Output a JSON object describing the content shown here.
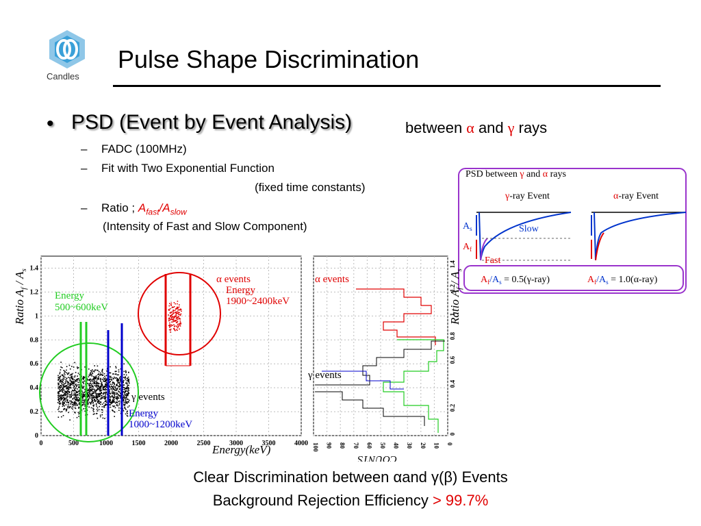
{
  "slide": {
    "title": "Pulse Shape Discrimination",
    "logo_label": "Candles",
    "bullet": "PSD (Event by Event Analysis)",
    "between": {
      "prefix": "between ",
      "alpha": "α",
      "and": " and ",
      "gamma": "γ",
      "suffix": " rays"
    },
    "dash": "–",
    "sub1": "FADC (100MHz)",
    "sub2": "Fit with Two Exponential Function",
    "sub2b": "(fixed time constants)",
    "sub3_prefix": "Ratio ; ",
    "sub3_afast": "A",
    "sub3_fast_sub": "fast",
    "sub3_slash": "/A",
    "sub3_slow_sub": "slow",
    "sub3b": "(Intensity of Fast  and Slow Component)",
    "footer1": "Clear Discrimination between αand γ(β) Events",
    "footer2_prefix": "Background Rejection Efficiency ",
    "footer2_value": "> 99.7%"
  },
  "inset": {
    "title_prefix": "PSD between ",
    "title_gamma": "γ",
    "title_and": " and ",
    "title_alpha": "α",
    "title_suffix": " rays",
    "gamma_event": "-ray Event",
    "alpha_event": "-ray Event",
    "as_label": "A",
    "as_sub": "s",
    "af_label": "A",
    "af_sub": "f",
    "slow": "Slow",
    "fast": "Fast",
    "ratio_gamma": "= 0.5(γ-ray)",
    "ratio_alpha": "= 1.0(α-ray)",
    "ratio_prefix_a": "A",
    "ratio_prefix_f": "f",
    "ratio_prefix_slash": "/A",
    "ratio_prefix_s": "s"
  },
  "scatter": {
    "ylabel": "Ratio A",
    "ylabel_f": "f",
    "ylabel_rest": " / A",
    "ylabel_s": "s",
    "xlabel": "Energy(keV)",
    "xticks": [
      "0",
      "500",
      "1000",
      "1500",
      "2000",
      "2500",
      "3000",
      "3500",
      "4000"
    ],
    "yticks": [
      "0",
      "0.2",
      "0.4",
      "0.6",
      "0.8",
      "1",
      "1.2",
      "1.4"
    ],
    "alpha_label": "α events",
    "alpha_energy1": "Energy",
    "alpha_energy2": "1900~2400keV",
    "green_energy1": "Energy",
    "green_energy2": "500~600keV",
    "gamma_label": "γ events",
    "blue_energy1": "Energy",
    "blue_energy2": "1000~1200keV"
  },
  "hist": {
    "alpha_label": "α events",
    "gamma_label": "γ events",
    "xlabel": "COUNTS",
    "xticks": [
      "100",
      "90",
      "80",
      "70",
      "60",
      "50",
      "40",
      "30",
      "20",
      "10",
      "0"
    ],
    "yticks": [
      "0",
      "0.2",
      "0.4",
      "0.6",
      "0.8",
      "1",
      "1.2",
      "1.4"
    ],
    "ylabel": "Ratio A",
    "ylabel_f": "f",
    "ylabel_rest": " / A",
    "ylabel_s": "s"
  },
  "colors": {
    "alpha": "#e00000",
    "gamma_green": "#22cc22",
    "blue": "#0000cc",
    "inset_border": "#9933cc"
  }
}
